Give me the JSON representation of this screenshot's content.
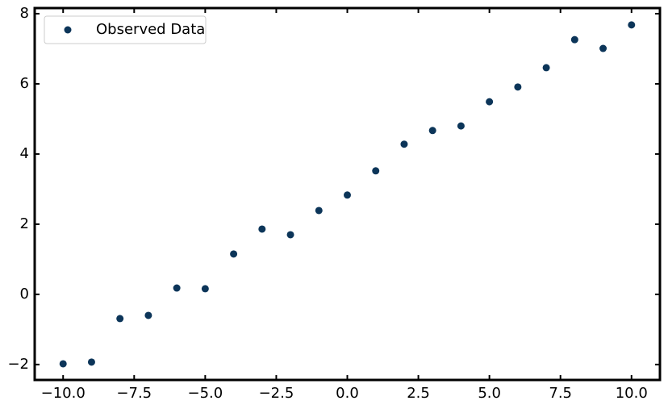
{
  "chart_data": {
    "type": "scatter",
    "x": [
      -10,
      -9,
      -8,
      -7,
      -6,
      -5,
      -4,
      -3,
      -2,
      -1,
      0,
      1,
      2,
      3,
      4,
      5,
      6,
      7,
      8,
      9,
      10
    ],
    "series": [
      {
        "name": "Observed Data",
        "color": "#0c3559",
        "values": [
          -1.98,
          -1.93,
          -0.69,
          -0.6,
          0.18,
          0.16,
          1.15,
          1.86,
          1.7,
          2.39,
          2.83,
          3.52,
          4.28,
          4.67,
          4.8,
          5.49,
          5.91,
          6.46,
          7.26,
          7.01,
          7.68
        ]
      }
    ],
    "xlim": [
      -11,
      11
    ],
    "ylim": [
      -2.44,
      8.16
    ],
    "xticks": [
      {
        "value": -10,
        "label": "−10.0"
      },
      {
        "value": -7.5,
        "label": "−7.5"
      },
      {
        "value": -5,
        "label": "−5.0"
      },
      {
        "value": -2.5,
        "label": "−2.5"
      },
      {
        "value": 0,
        "label": "0.0"
      },
      2.5,
      {
        "value": 5,
        "label": "5.0"
      },
      7.5,
      {
        "value": 10,
        "label": "10.0"
      }
    ],
    "yticks": [
      {
        "value": -2,
        "label": "−2"
      },
      0,
      2,
      4,
      6,
      8
    ],
    "grid": false,
    "legend": "upper-left"
  }
}
